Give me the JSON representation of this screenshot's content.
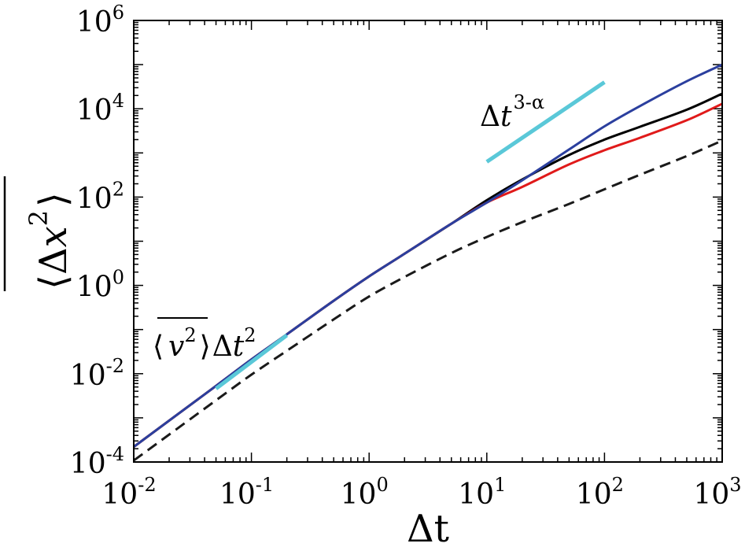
{
  "chart_data": {
    "type": "line",
    "title": "",
    "x_scale": "log",
    "y_scale": "log",
    "xlim": [
      0.01,
      1000
    ],
    "ylim": [
      0.0001,
      1000000
    ],
    "grid": false,
    "xlabel": "Δt",
    "ylabel": {
      "open": "⟨",
      "delta": "Δ",
      "var": "x",
      "exp": "2",
      "close": "⟩"
    },
    "x_ticks": [
      {
        "base": "10",
        "exp": "-2"
      },
      {
        "base": "10",
        "exp": "-1"
      },
      {
        "base": "10",
        "exp": "0"
      },
      {
        "base": "10",
        "exp": "1"
      },
      {
        "base": "10",
        "exp": "2"
      },
      {
        "base": "10",
        "exp": "3"
      }
    ],
    "y_ticks": [
      {
        "base": "10",
        "exp": "-4"
      },
      {
        "base": "10",
        "exp": "-2"
      },
      {
        "base": "10",
        "exp": "0"
      },
      {
        "base": "10",
        "exp": "2"
      },
      {
        "base": "10",
        "exp": "4"
      },
      {
        "base": "10",
        "exp": "6"
      }
    ],
    "series": [
      {
        "color": "#1a1a1a",
        "dash": "14,8",
        "points": [
          [
            0.01,
            0.000108
          ],
          [
            0.05,
            0.0025
          ],
          [
            0.1,
            0.0095
          ],
          [
            0.2,
            0.033
          ],
          [
            0.5,
            0.17
          ],
          [
            1,
            0.56
          ],
          [
            2,
            1.55
          ],
          [
            5,
            5.4
          ],
          [
            10,
            12.5
          ],
          [
            20,
            27
          ],
          [
            50,
            70
          ],
          [
            100,
            150
          ],
          [
            200,
            320
          ],
          [
            500,
            850
          ],
          [
            1000,
            1900
          ]
        ]
      },
      {
        "color": "#000000",
        "points": [
          [
            0.01,
            0.00022
          ],
          [
            0.05,
            0.0053
          ],
          [
            0.1,
            0.021
          ],
          [
            0.2,
            0.078
          ],
          [
            0.5,
            0.45
          ],
          [
            1,
            1.6
          ],
          [
            2,
            5.2
          ],
          [
            5,
            25
          ],
          [
            10,
            85
          ],
          [
            20,
            250
          ],
          [
            50,
            900
          ],
          [
            100,
            2000
          ],
          [
            200,
            3900
          ],
          [
            500,
            9500
          ],
          [
            1000,
            22000
          ]
        ]
      },
      {
        "color": "#e01a1a",
        "points": [
          [
            0.01,
            0.00022
          ],
          [
            0.05,
            0.0053
          ],
          [
            0.1,
            0.021
          ],
          [
            0.2,
            0.078
          ],
          [
            0.5,
            0.45
          ],
          [
            1,
            1.6
          ],
          [
            2,
            5.2
          ],
          [
            5,
            25
          ],
          [
            10,
            75
          ],
          [
            20,
            170
          ],
          [
            50,
            550
          ],
          [
            100,
            1150
          ],
          [
            200,
            2200
          ],
          [
            500,
            5500
          ],
          [
            1000,
            13000
          ]
        ]
      },
      {
        "color": "#2b3f9e",
        "points": [
          [
            0.01,
            0.00022
          ],
          [
            0.05,
            0.0053
          ],
          [
            0.1,
            0.021
          ],
          [
            0.2,
            0.078
          ],
          [
            0.5,
            0.45
          ],
          [
            1,
            1.6
          ],
          [
            2,
            5.2
          ],
          [
            5,
            25
          ],
          [
            10,
            75
          ],
          [
            20,
            240
          ],
          [
            50,
            1200
          ],
          [
            100,
            4000
          ],
          [
            200,
            11500
          ],
          [
            500,
            42000
          ],
          [
            1000,
            100000
          ]
        ]
      },
      {
        "color": "#5ac8d8",
        "width": 5,
        "points": [
          [
            0.05,
            0.0046
          ],
          [
            0.2,
            0.074
          ]
        ]
      },
      {
        "color": "#5ac8d8",
        "width": 5,
        "points": [
          [
            10,
            630
          ],
          [
            100,
            40000
          ]
        ]
      }
    ],
    "annotations": [
      {
        "name": "annotation-ballistic",
        "x": 0.0105,
        "y": 0.025,
        "open": "⟨",
        "var": "v",
        "var_exp": "2",
        "close": "⟩",
        "delta": "Δ",
        "t": "t",
        "t_exp": "2"
      },
      {
        "name": "annotation-superdiffusive",
        "x": 9.8,
        "y": 5500,
        "delta": "Δ",
        "t": "t",
        "t_exp": "3-α"
      }
    ]
  }
}
